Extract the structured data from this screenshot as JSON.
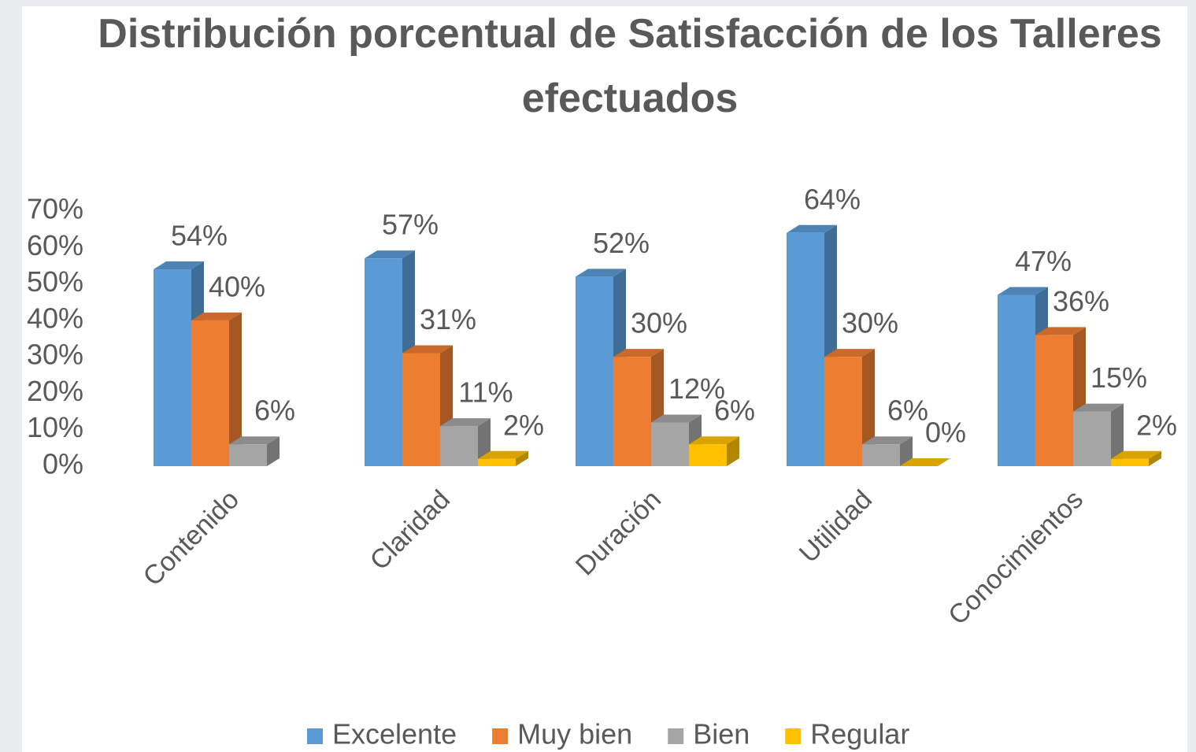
{
  "chart_data": {
    "type": "bar3d",
    "title": "Distribución porcentual de Satisfacción de los Talleres efectuados",
    "categories": [
      "Contenido",
      "Claridad",
      "Duración",
      "Utilidad",
      "Conocimientos"
    ],
    "series": [
      {
        "name": "Excelente",
        "color": "#5b9bd5",
        "values": [
          54,
          57,
          52,
          64,
          47
        ],
        "value_labels": [
          "54%",
          "57%",
          "52%",
          "64%",
          "47%"
        ]
      },
      {
        "name": "Muy bien",
        "color": "#ed7d31",
        "values": [
          40,
          31,
          30,
          30,
          36
        ],
        "value_labels": [
          "40%",
          "31%",
          "30%",
          "30%",
          "36%"
        ]
      },
      {
        "name": "Bien",
        "color": "#a5a5a5",
        "values": [
          6,
          11,
          12,
          6,
          15
        ],
        "value_labels": [
          "6%",
          "11%",
          "12%",
          "6%",
          "15%"
        ]
      },
      {
        "name": "Regular",
        "color": "#ffc000",
        "values": [
          null,
          2,
          6,
          0,
          2
        ],
        "value_labels": [
          null,
          "2%",
          "6%",
          "0%",
          "2%"
        ]
      }
    ],
    "ylim": [
      0,
      70
    ],
    "yticks": [
      {
        "value": 0,
        "label": "0%"
      },
      {
        "value": 10,
        "label": "10%"
      },
      {
        "value": 20,
        "label": "20%"
      },
      {
        "value": 30,
        "label": "30%"
      },
      {
        "value": 40,
        "label": "40%"
      },
      {
        "value": 50,
        "label": "50%"
      },
      {
        "value": 60,
        "label": "60%"
      },
      {
        "value": 70,
        "label": "70%"
      }
    ],
    "grid": false,
    "legend": "bottom"
  }
}
